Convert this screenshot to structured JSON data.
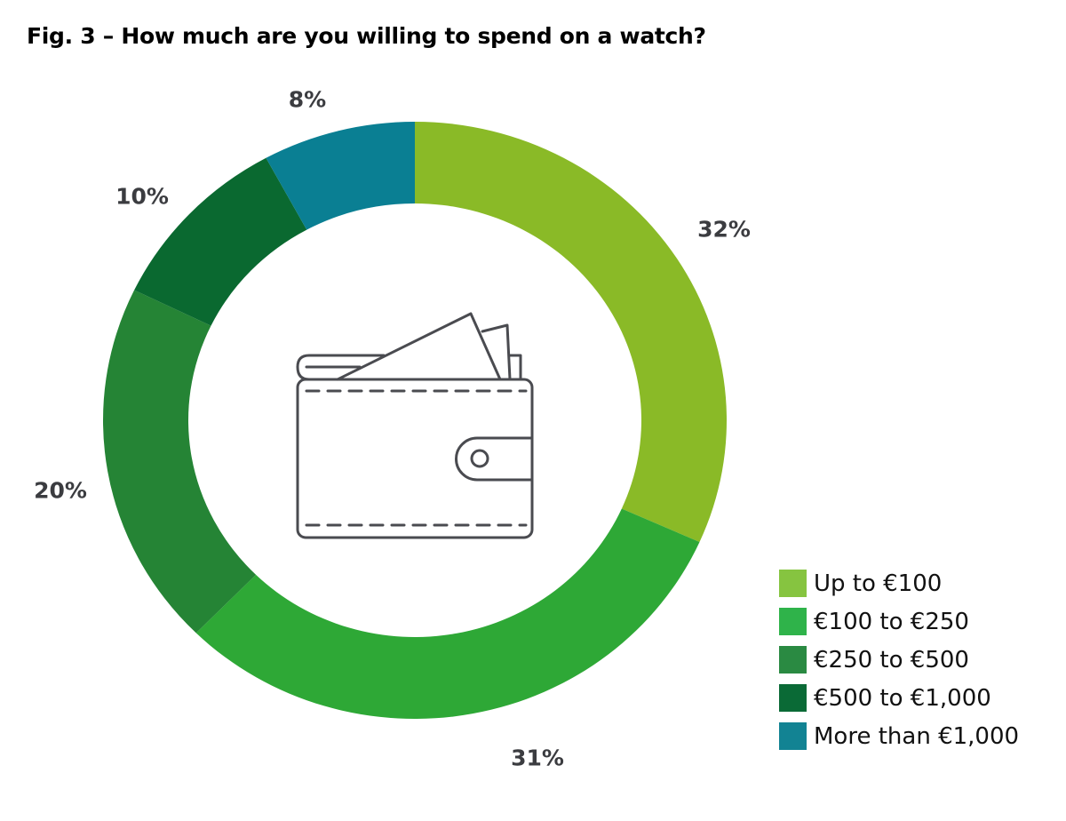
{
  "chart_data": {
    "type": "pie",
    "variant": "donut",
    "title": "Fig. 3 – How much are you willing to spend on a watch?",
    "categories": [
      "Up to €100",
      "€100 to €250",
      "€250 to €500",
      "€500 to €1,000",
      "More than €1,000"
    ],
    "values": [
      32,
      31,
      20,
      10,
      8
    ],
    "value_labels": [
      "32%",
      "31%",
      "20%",
      "10%",
      "8%"
    ],
    "unit": "%",
    "slice_colors": [
      "#8aba27",
      "#2ea836",
      "#258435",
      "#0a6930",
      "#0a7f93"
    ],
    "legend_colors": [
      "#86c440",
      "#2fb34a",
      "#2a8a42",
      "#0a6a36",
      "#128393"
    ],
    "legend_position": "bottom-right",
    "center_icon": "wallet-icon"
  }
}
